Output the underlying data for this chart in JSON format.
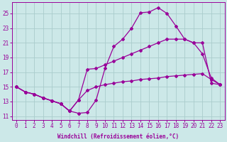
{
  "xlabel": "Windchill (Refroidissement éolien,°C)",
  "xlim": [
    -0.5,
    23.5
  ],
  "ylim": [
    10.5,
    26.5
  ],
  "xticks": [
    0,
    1,
    2,
    3,
    4,
    5,
    6,
    7,
    8,
    9,
    10,
    11,
    12,
    13,
    14,
    15,
    16,
    17,
    18,
    19,
    20,
    21,
    22,
    23
  ],
  "yticks": [
    11,
    13,
    15,
    17,
    19,
    21,
    23,
    25
  ],
  "bg_color": "#cce8e8",
  "grid_color": "#aacccc",
  "line_color": "#990099",
  "line1_y": [
    15.0,
    14.3,
    14.0,
    13.5,
    13.1,
    12.7,
    11.7,
    11.4,
    11.5,
    13.2,
    17.5,
    20.5,
    21.5,
    23.0,
    25.1,
    25.2,
    25.8,
    25.0,
    23.3,
    21.5,
    21.0,
    19.5,
    16.2,
    15.3
  ],
  "line2_y": [
    15.0,
    14.3,
    14.0,
    13.5,
    13.1,
    12.7,
    11.7,
    13.2,
    17.4,
    17.5,
    18.0,
    18.5,
    19.0,
    19.5,
    20.0,
    20.5,
    21.0,
    21.5,
    21.5,
    21.5,
    21.0,
    21.0,
    15.5,
    15.3
  ],
  "line3_y": [
    15.0,
    14.3,
    14.0,
    13.5,
    13.1,
    12.7,
    11.7,
    13.2,
    14.5,
    15.0,
    15.3,
    15.5,
    15.7,
    15.8,
    16.0,
    16.1,
    16.2,
    16.4,
    16.5,
    16.6,
    16.7,
    16.8,
    16.0,
    15.3
  ],
  "marker": "D",
  "marker_size": 2.0,
  "line_width": 0.9,
  "tick_fontsize": 5.5,
  "xlabel_fontsize": 5.5
}
